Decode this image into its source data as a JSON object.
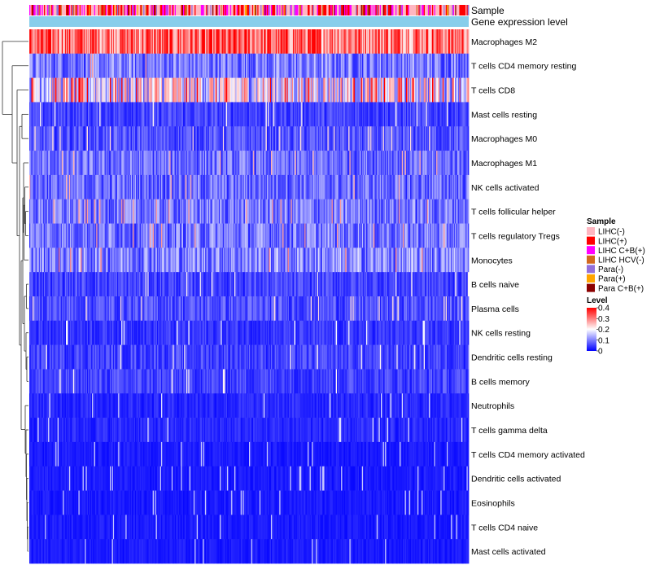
{
  "chart_data": {
    "type": "heatmap",
    "title": "",
    "annotation_tracks": [
      "Sample",
      "Gene expression level"
    ],
    "rows": [
      "Macrophages M2",
      "T cells CD4 memory resting",
      "T cells CD8",
      "Mast cells resting",
      "Macrophages M0",
      "Macrophages M1",
      "NK cells activated",
      "T cells follicular helper",
      "T cells regulatory  Tregs",
      "Monocytes",
      "B cells naive",
      "Plasma cells",
      "NK cells resting",
      "Dendritic cells resting",
      "B cells memory",
      "Neutrophils",
      "T cells gamma delta",
      "T cells CD4 memory activated",
      "Dendritic cells activated",
      "Eosinophils",
      "T cells CD4 naive",
      "Mast cells activated"
    ],
    "row_mean_level": [
      0.32,
      0.09,
      0.2,
      0.05,
      0.06,
      0.08,
      0.08,
      0.09,
      0.09,
      0.1,
      0.05,
      0.06,
      0.04,
      0.05,
      0.05,
      0.03,
      0.03,
      0.02,
      0.02,
      0.02,
      0.02,
      0.02
    ],
    "column_count": 420,
    "sample_legend": {
      "title": "Sample",
      "entries": [
        {
          "label": "LIHC(-)",
          "color": "#ffb6c1"
        },
        {
          "label": "LIHC(+)",
          "color": "#ff0000"
        },
        {
          "label": "LIHC C+B(+)",
          "color": "#ff00ff"
        },
        {
          "label": "LIHC HCV(-)",
          "color": "#d2691e"
        },
        {
          "label": "Para(-)",
          "color": "#9370db"
        },
        {
          "label": "Para(+)",
          "color": "#ffa500"
        },
        {
          "label": "Para C+B(+)",
          "color": "#8b0000"
        }
      ]
    },
    "sample_mix": [
      0.4,
      0.25,
      0.15,
      0.05,
      0.08,
      0.03,
      0.04
    ],
    "expression_track_color": "#87ceeb",
    "level_legend": {
      "title": "Level",
      "min": 0,
      "max": 0.4,
      "ticks": [
        "0.4",
        "0.3",
        "0.2",
        "0.1",
        "0"
      ],
      "colors": [
        "#0000ff",
        "#ffffff",
        "#ff0000"
      ]
    }
  }
}
